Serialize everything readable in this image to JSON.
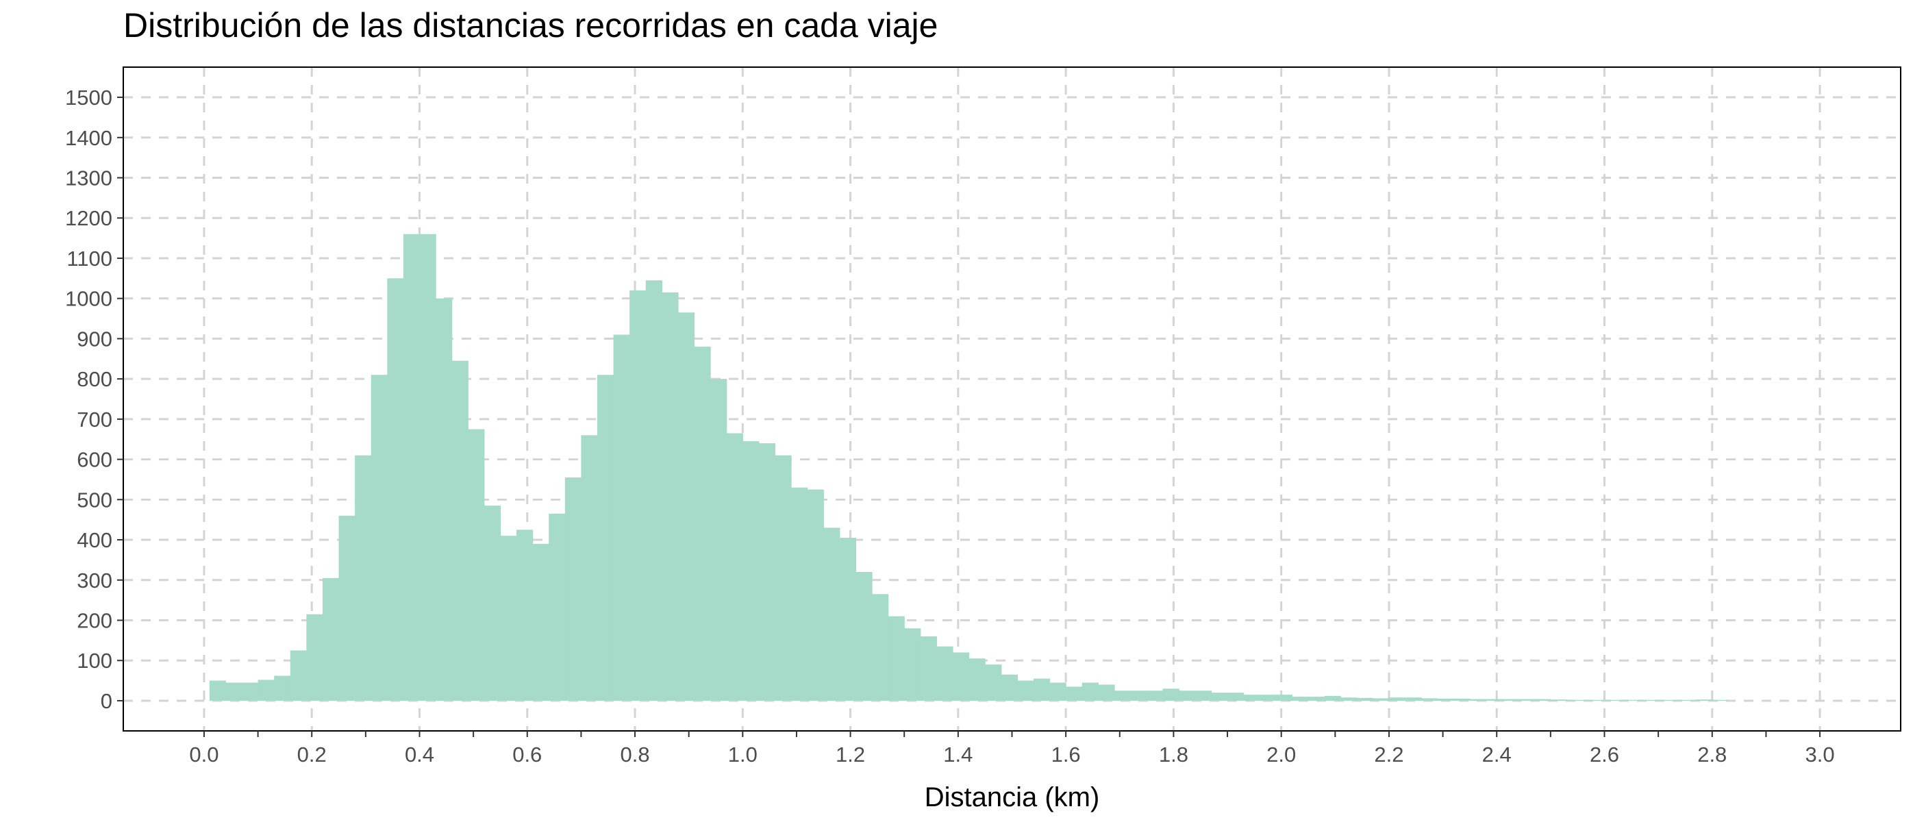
{
  "title": "Distribución de las distancias recorridas en cada viaje",
  "chart_data": {
    "type": "bar",
    "title": "Distribución de las distancias recorridas en cada viaje",
    "xlabel": "Distancia (km)",
    "ylabel": "",
    "xlim": [
      -0.15,
      3.15
    ],
    "ylim": [
      -75,
      1575
    ],
    "bin_width": 0.03,
    "grid": true,
    "grid_style": "dashed",
    "bar_color": "#a6dac9",
    "x_ticks": [
      "0.0",
      "0.2",
      "0.4",
      "0.6",
      "0.8",
      "1.0",
      "1.2",
      "1.4",
      "1.6",
      "1.8",
      "2.0",
      "2.2",
      "2.4",
      "2.6",
      "2.8",
      "3.0"
    ],
    "y_ticks": [
      "0",
      "100",
      "200",
      "300",
      "400",
      "500",
      "600",
      "700",
      "800",
      "900",
      "1000",
      "1100",
      "1200",
      "1300",
      "1400",
      "1500"
    ],
    "x": [
      0.025,
      0.055,
      0.085,
      0.115,
      0.145,
      0.175,
      0.205,
      0.235,
      0.265,
      0.295,
      0.325,
      0.355,
      0.385,
      0.415,
      0.445,
      0.475,
      0.505,
      0.535,
      0.565,
      0.595,
      0.625,
      0.655,
      0.685,
      0.715,
      0.745,
      0.775,
      0.805,
      0.835,
      0.865,
      0.895,
      0.925,
      0.955,
      0.985,
      1.015,
      1.045,
      1.075,
      1.105,
      1.135,
      1.165,
      1.195,
      1.225,
      1.255,
      1.285,
      1.315,
      1.345,
      1.375,
      1.405,
      1.435,
      1.465,
      1.495,
      1.525,
      1.555,
      1.585,
      1.615,
      1.645,
      1.675,
      1.705,
      1.735,
      1.765,
      1.795,
      1.825,
      1.855,
      1.885,
      1.915,
      1.945,
      1.975,
      2.005,
      2.035,
      2.065,
      2.095,
      2.125,
      2.155,
      2.185,
      2.215,
      2.245,
      2.275,
      2.305,
      2.335,
      2.365,
      2.395,
      2.425,
      2.455,
      2.485,
      2.515,
      2.545,
      2.575,
      2.605,
      2.635,
      2.665,
      2.695,
      2.725,
      2.755,
      2.785,
      2.815
    ],
    "values": [
      50,
      45,
      45,
      52,
      62,
      125,
      215,
      305,
      460,
      610,
      810,
      1050,
      1160,
      1160,
      1000,
      845,
      675,
      485,
      410,
      425,
      390,
      465,
      555,
      660,
      810,
      910,
      1020,
      1045,
      1015,
      965,
      880,
      800,
      665,
      645,
      640,
      610,
      530,
      525,
      430,
      405,
      320,
      265,
      210,
      180,
      160,
      135,
      120,
      105,
      90,
      65,
      50,
      55,
      45,
      35,
      45,
      40,
      25,
      25,
      25,
      30,
      25,
      25,
      20,
      20,
      15,
      15,
      15,
      10,
      10,
      12,
      8,
      7,
      6,
      8,
      8,
      6,
      5,
      5,
      4,
      4,
      4,
      4,
      4,
      3,
      2,
      2,
      2,
      2,
      2,
      2,
      2,
      2,
      3,
      2
    ]
  }
}
